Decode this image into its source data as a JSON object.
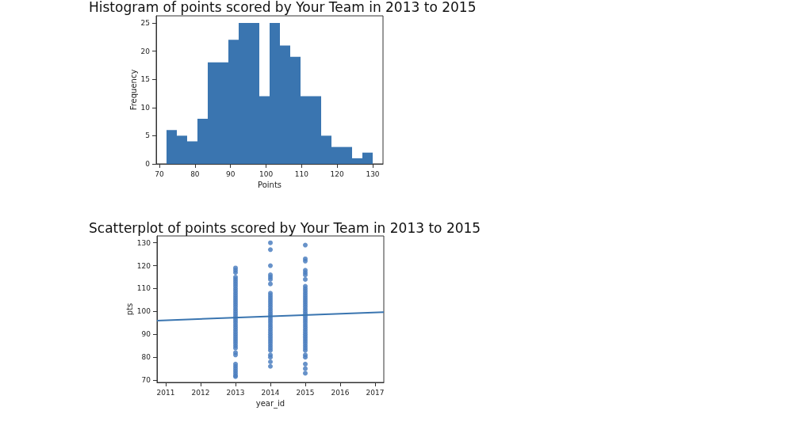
{
  "chart_data": [
    {
      "type": "histogram",
      "title": "Histogram of points scored by Your Team in 2013 to 2015",
      "xlabel": "Points",
      "ylabel": "Frequency",
      "color": "#3a75b0",
      "bins": [
        72,
        74.9,
        77.8,
        80.7,
        83.6,
        86.5,
        89.4,
        92.3,
        95.2,
        98.1,
        101,
        103.9,
        106.8,
        109.7,
        112.6,
        115.5,
        118.4,
        121.3,
        124.2,
        127.1,
        130
      ],
      "values": [
        6,
        5,
        4,
        8,
        18,
        18,
        22,
        25,
        25,
        12,
        25,
        21,
        19,
        12,
        12,
        5,
        3,
        3,
        1,
        2
      ],
      "xlim": [
        69.1,
        132.9
      ],
      "xticks": [
        70,
        80,
        90,
        100,
        110,
        120,
        130
      ],
      "ylim": [
        0,
        26.25
      ],
      "yticks": [
        0,
        5,
        10,
        15,
        20,
        25
      ],
      "grid": false
    },
    {
      "type": "scatter",
      "title": "Scatterplot of points scored by Your Team in 2013 to 2015",
      "xlabel": "year_id",
      "ylabel": "pts",
      "grid": false,
      "xlim": [
        2010.75,
        2017.25
      ],
      "xticks": [
        2011,
        2012,
        2013,
        2014,
        2015,
        2016,
        2017
      ],
      "ylim": [
        69,
        133
      ],
      "yticks": [
        70,
        80,
        90,
        100,
        110,
        120,
        130
      ],
      "series": [
        {
          "type": "scatter",
          "marker": "circle",
          "color": "#4c7fbf",
          "x": [
            2013,
            2013,
            2013,
            2013,
            2013,
            2013,
            2013,
            2013,
            2013,
            2013,
            2013,
            2013,
            2013,
            2013,
            2013,
            2013,
            2013,
            2013,
            2013,
            2013,
            2013,
            2013,
            2013,
            2013,
            2013,
            2013,
            2013,
            2013,
            2013,
            2013,
            2013,
            2013,
            2013,
            2013,
            2013,
            2013,
            2013,
            2013,
            2013,
            2013,
            2013,
            2013,
            2013,
            2013,
            2014,
            2014,
            2014,
            2014,
            2014,
            2014,
            2014,
            2014,
            2014,
            2014,
            2014,
            2014,
            2014,
            2014,
            2014,
            2014,
            2014,
            2014,
            2014,
            2014,
            2014,
            2014,
            2014,
            2014,
            2014,
            2014,
            2014,
            2014,
            2014,
            2014,
            2014,
            2014,
            2014,
            2014,
            2014,
            2014,
            2014,
            2015,
            2015,
            2015,
            2015,
            2015,
            2015,
            2015,
            2015,
            2015,
            2015,
            2015,
            2015,
            2015,
            2015,
            2015,
            2015,
            2015,
            2015,
            2015,
            2015,
            2015,
            2015,
            2015,
            2015,
            2015,
            2015,
            2015,
            2015,
            2015,
            2015,
            2015,
            2015,
            2015,
            2015,
            2015,
            2015,
            2015,
            2015,
            2015,
            2015,
            2015
          ],
          "values": [
            119,
            118,
            117,
            115,
            114,
            113,
            112,
            111,
            110,
            109,
            108,
            107,
            106,
            105,
            104,
            103,
            102,
            101,
            100,
            99,
            98,
            97,
            96,
            95,
            94,
            93,
            92,
            91,
            90,
            89,
            88,
            87,
            86,
            85,
            84,
            82,
            81,
            77,
            76,
            75,
            74,
            73,
            72,
            71.5,
            130,
            127,
            120,
            116,
            115,
            114,
            112,
            108,
            107,
            106,
            105,
            104,
            103,
            102,
            101,
            100,
            99,
            98,
            97,
            96,
            95,
            94,
            93,
            92,
            91,
            90,
            89,
            88,
            87,
            86,
            85,
            84,
            83,
            81,
            80,
            78,
            76,
            129,
            123,
            122,
            118,
            117,
            116,
            114,
            111,
            110,
            109,
            108,
            107,
            106,
            105,
            104,
            103,
            102,
            101,
            100,
            99,
            98,
            97,
            96,
            95,
            94,
            93,
            92,
            91,
            90,
            89,
            88,
            87,
            86,
            85,
            84,
            83,
            81,
            80,
            77,
            75,
            73
          ]
        },
        {
          "type": "line",
          "color": "#3a75b0",
          "line_style": "solid",
          "x": [
            2010.75,
            2017.25
          ],
          "values": [
            96,
            99.7
          ]
        }
      ]
    }
  ]
}
